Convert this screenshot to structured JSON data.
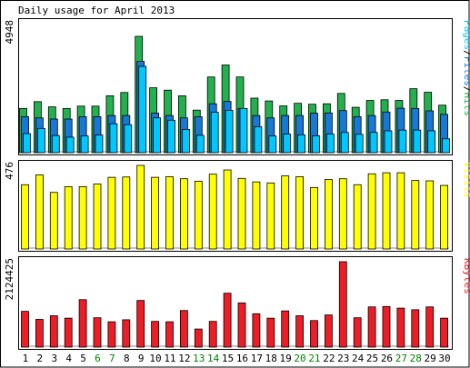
{
  "title": "Daily usage for April 2013",
  "colors": {
    "background": "#ffffff",
    "panel": "#ffffff",
    "hits": "#22b14c",
    "files": "#1878d8",
    "pages": "#00c8ff",
    "visits": "#ffff00",
    "kbytes": "#ee1c24",
    "weekday_label": "#000000",
    "weekend_label": "#008000"
  },
  "chart_data": [
    {
      "name": "hits-files-pages",
      "type": "bar",
      "categories": [
        "1",
        "2",
        "3",
        "4",
        "5",
        "6",
        "7",
        "8",
        "9",
        "10",
        "11",
        "12",
        "13",
        "14",
        "15",
        "16",
        "17",
        "18",
        "19",
        "20",
        "21",
        "22",
        "23",
        "24",
        "25",
        "26",
        "27",
        "28",
        "29",
        "30"
      ],
      "weekend_days": [
        "6",
        "7",
        "13",
        "14",
        "20",
        "21",
        "27",
        "28"
      ],
      "ymax_label": "4948",
      "right_label_parts": [
        "Pages",
        "/",
        "Files",
        "/",
        "Hits"
      ],
      "ylim": [
        0,
        4948
      ],
      "series": [
        {
          "key": "hits",
          "values": [
            1880,
            2170,
            1950,
            1880,
            1980,
            1980,
            2420,
            2560,
            4948,
            2760,
            2660,
            2420,
            1810,
            3220,
            3730,
            3220,
            2320,
            2200,
            1990,
            2100,
            2060,
            2080,
            2520,
            1930,
            2220,
            2250,
            2220,
            2720,
            2570,
            2020
          ]
        },
        {
          "key": "files",
          "values": [
            1530,
            1480,
            1430,
            1430,
            1530,
            1530,
            1580,
            1580,
            3880,
            1680,
            1580,
            1480,
            1530,
            2080,
            2180,
            1880,
            1580,
            1480,
            1580,
            1580,
            1680,
            1690,
            1790,
            1530,
            1580,
            1730,
            1890,
            1880,
            1780,
            1630
          ]
        },
        {
          "key": "pages",
          "values": [
            810,
            1030,
            730,
            660,
            710,
            750,
            1230,
            1190,
            3670,
            1480,
            1380,
            990,
            740,
            1720,
            1800,
            1880,
            1100,
            710,
            790,
            760,
            720,
            790,
            860,
            780,
            860,
            930,
            960,
            960,
            930,
            590
          ]
        }
      ]
    },
    {
      "name": "visits",
      "type": "bar",
      "categories": [
        "1",
        "2",
        "3",
        "4",
        "5",
        "6",
        "7",
        "8",
        "9",
        "10",
        "11",
        "12",
        "13",
        "14",
        "15",
        "16",
        "17",
        "18",
        "19",
        "20",
        "21",
        "22",
        "23",
        "24",
        "25",
        "26",
        "27",
        "28",
        "29",
        "30"
      ],
      "ymax_label": "476",
      "right_label": "Visits",
      "ylim": [
        0,
        476
      ],
      "series": [
        {
          "key": "visits",
          "values": [
            366,
            422,
            322,
            355,
            355,
            370,
            408,
            410,
            476,
            408,
            412,
            400,
            386,
            426,
            450,
            402,
            382,
            376,
            416,
            412,
            350,
            396,
            400,
            366,
            428,
            434,
            434,
            390,
            388,
            362
          ]
        }
      ]
    },
    {
      "name": "kbytes",
      "type": "bar",
      "categories": [
        "1",
        "2",
        "3",
        "4",
        "5",
        "6",
        "7",
        "8",
        "9",
        "10",
        "11",
        "12",
        "13",
        "14",
        "15",
        "16",
        "17",
        "18",
        "19",
        "20",
        "21",
        "22",
        "23",
        "24",
        "25",
        "26",
        "27",
        "28",
        "29",
        "30"
      ],
      "ymax_label": "2124425",
      "right_label": "KBytes",
      "ylim": [
        0,
        2124425
      ],
      "series": [
        {
          "key": "kbytes",
          "values": [
            890000,
            690000,
            780000,
            720000,
            1180000,
            730000,
            630000,
            680000,
            1160000,
            640000,
            630000,
            910000,
            450000,
            640000,
            1340000,
            1100000,
            830000,
            720000,
            900000,
            780000,
            660000,
            800000,
            2124425,
            730000,
            1000000,
            1010000,
            970000,
            930000,
            1000000,
            720000
          ]
        }
      ]
    }
  ]
}
